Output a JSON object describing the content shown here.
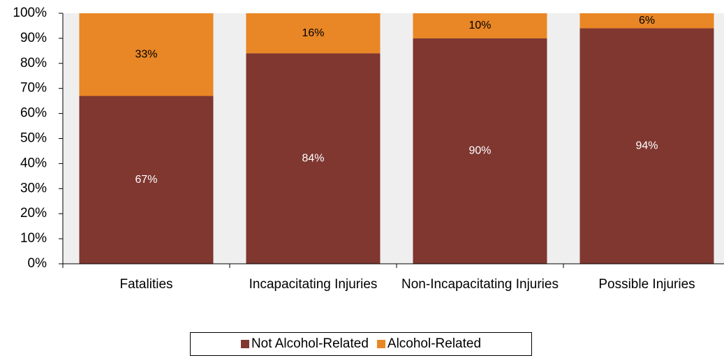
{
  "chart_data": {
    "type": "stacked_bar",
    "categories": [
      "Fatalities",
      "Incapacitating Injuries",
      "Non-Incapacitating Injuries",
      "Possible Injuries"
    ],
    "series": [
      {
        "name": "Not Alcohol-Related",
        "color": "#7f3730",
        "values": [
          67,
          84,
          90,
          94
        ],
        "value_labels": [
          "67%",
          "84%",
          "90%",
          "94%"
        ]
      },
      {
        "name": "Alcohol-Related",
        "color": "#e98625",
        "values": [
          33,
          16,
          10,
          6
        ],
        "value_labels": [
          "33%",
          "16%",
          "10%",
          "6%"
        ]
      }
    ],
    "ylim": [
      0,
      100
    ],
    "yticks": [
      {
        "value": 0,
        "label": "0%"
      },
      {
        "value": 10,
        "label": "10%"
      },
      {
        "value": 20,
        "label": "20%"
      },
      {
        "value": 30,
        "label": "30%"
      },
      {
        "value": 40,
        "label": "40%"
      },
      {
        "value": 50,
        "label": "50%"
      },
      {
        "value": 60,
        "label": "60%"
      },
      {
        "value": 70,
        "label": "70%"
      },
      {
        "value": 80,
        "label": "80%"
      },
      {
        "value": 90,
        "label": "90%"
      },
      {
        "value": 100,
        "label": "100%"
      }
    ],
    "legend": "bottom"
  }
}
